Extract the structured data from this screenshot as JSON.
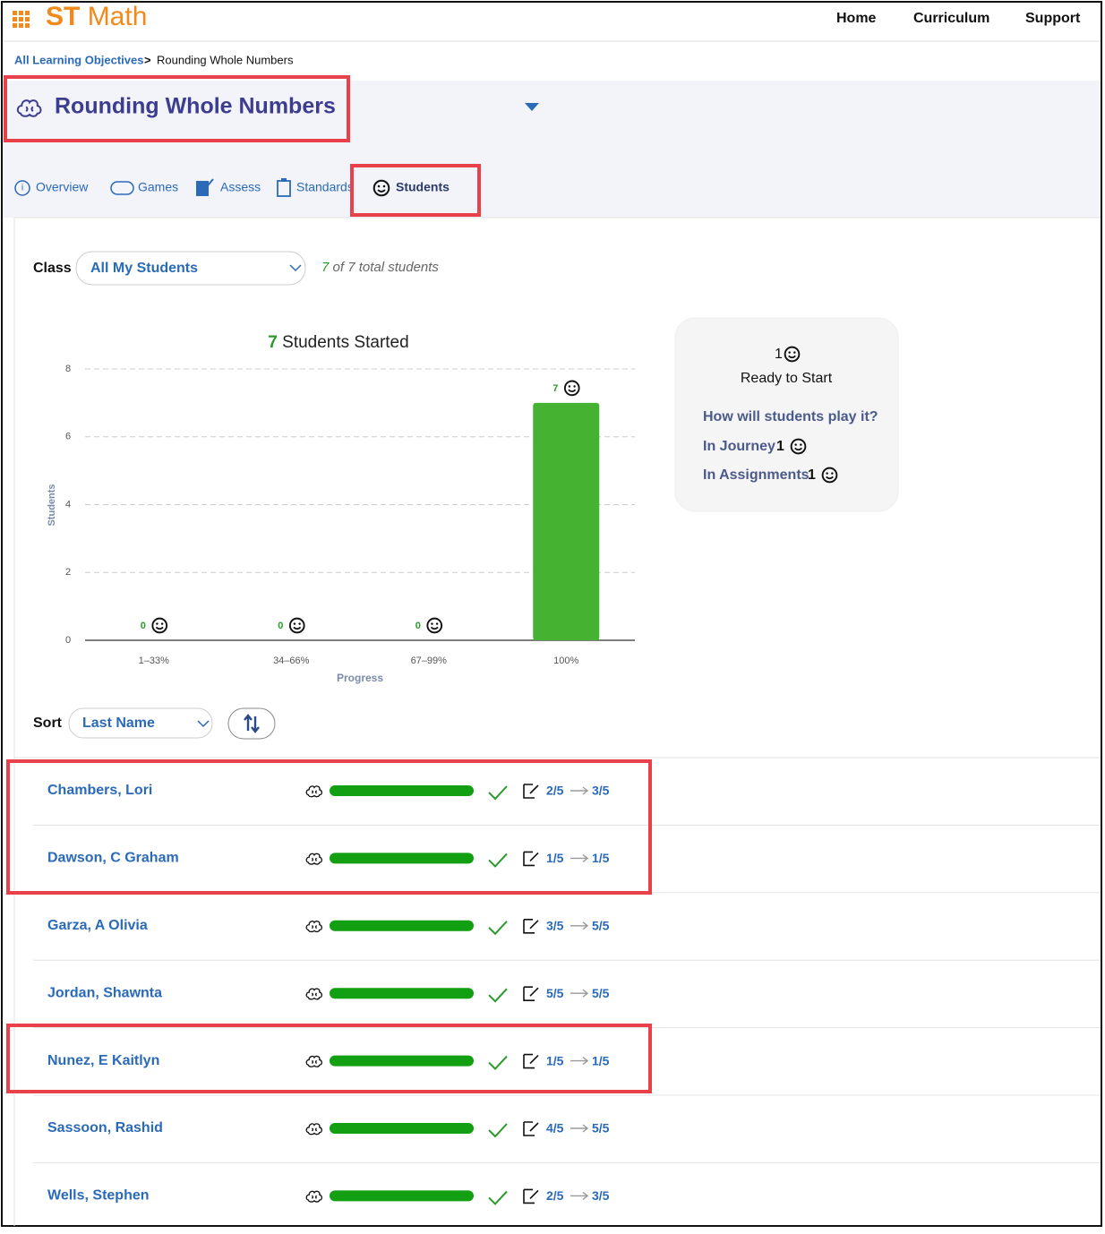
{
  "header": {
    "logo_st": "ST",
    "logo_math": "Math",
    "nav": [
      "Home",
      "Curriculum",
      "Support"
    ]
  },
  "breadcrumb": {
    "parent": "All Learning Objectives",
    "separator": ">",
    "current": "Rounding Whole Numbers"
  },
  "objective": {
    "title": "Rounding Whole Numbers"
  },
  "tabs": [
    "Overview",
    "Games",
    "Assess",
    "Standards",
    "Students"
  ],
  "class_filter": {
    "label": "Class",
    "selected": "All My Students",
    "shown": "7",
    "summary": "of 7 total students"
  },
  "chart_data": {
    "type": "bar",
    "title_count": 7,
    "title": "Students Started",
    "categories": [
      "1–33%",
      "34–66%",
      "67–99%",
      "100%"
    ],
    "values": [
      0,
      0,
      0,
      7
    ],
    "color": "#45b232",
    "x_label": "Progress",
    "y_label": "Students",
    "ylim": [
      0,
      8
    ],
    "yticks": [
      0,
      2,
      4,
      6,
      8
    ],
    "grid": true
  },
  "ready_card": {
    "ready_count": 1,
    "ready_label": "Ready to Start",
    "question": "How will students play it?",
    "journey_label": "In Journey",
    "journey_count": 1,
    "assignments_label": "In Assignments",
    "assignments_count": 1
  },
  "sort": {
    "label": "Sort",
    "selected": "Last Name"
  },
  "students": [
    {
      "name": "Chambers, Lori",
      "progress": 100,
      "pre": "2/5",
      "post": "3/5"
    },
    {
      "name": "Dawson, C Graham",
      "progress": 100,
      "pre": "1/5",
      "post": "1/5"
    },
    {
      "name": "Garza, A Olivia",
      "progress": 100,
      "pre": "3/5",
      "post": "5/5"
    },
    {
      "name": "Jordan, Shawnta",
      "progress": 100,
      "pre": "5/5",
      "post": "5/5"
    },
    {
      "name": "Nunez, E Kaitlyn",
      "progress": 100,
      "pre": "1/5",
      "post": "1/5"
    },
    {
      "name": "Sassoon, Rashid",
      "progress": 100,
      "pre": "4/5",
      "post": "5/5"
    },
    {
      "name": "Wells, Stephen",
      "progress": 100,
      "pre": "2/5",
      "post": "3/5"
    }
  ]
}
